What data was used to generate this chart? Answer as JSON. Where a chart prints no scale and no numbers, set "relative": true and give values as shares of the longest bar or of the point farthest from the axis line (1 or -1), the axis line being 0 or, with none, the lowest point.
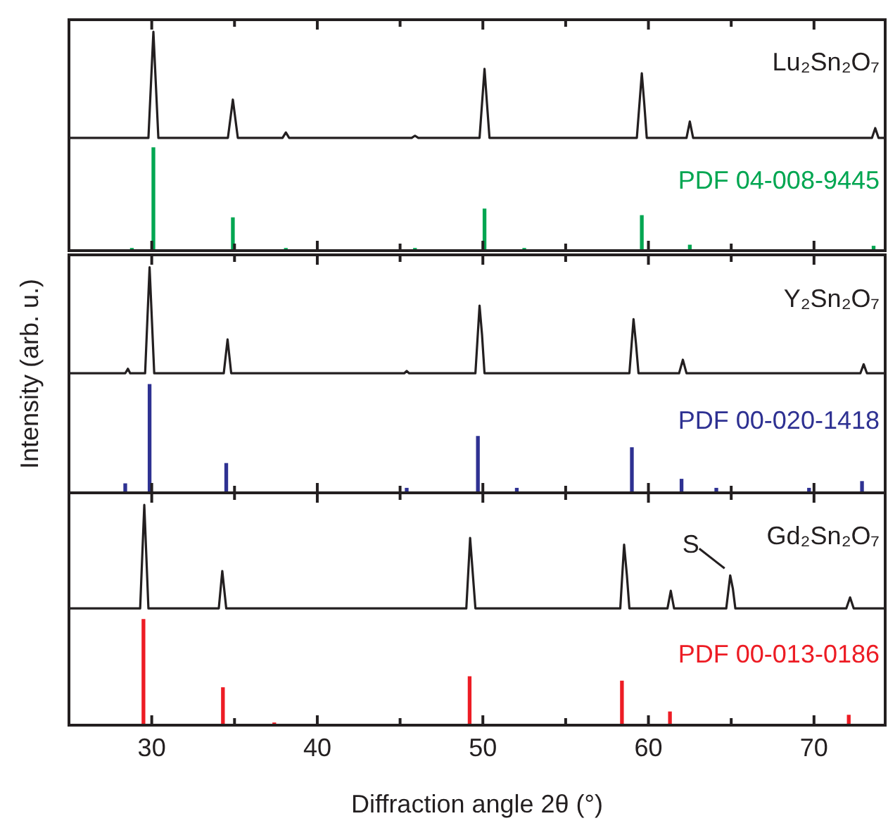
{
  "chart_data": [
    {
      "type": "line",
      "relative": true,
      "xlim": [
        25,
        74.3
      ],
      "xticks": [
        30,
        {
          "value": 35,
          "label": null
        },
        40,
        {
          "value": 45,
          "label": null
        },
        50,
        {
          "value": 55,
          "label": null
        },
        60,
        {
          "value": 65,
          "label": null
        },
        70
      ],
      "tick_labels": false,
      "grid": false,
      "legend": "top right",
      "marker": "none",
      "series": [
        {
          "name": "Lu₂Sn₂O₇",
          "color": "#231f20",
          "x": [
            25,
            29.8,
            30.1,
            30.4,
            34.6,
            34.9,
            35.2,
            37.9,
            38.1,
            38.3,
            45.7,
            45.9,
            46.1,
            49.8,
            50.1,
            50.25,
            50.4,
            59.3,
            59.6,
            59.75,
            59.9,
            62.3,
            62.5,
            62.7,
            73.5,
            73.7,
            73.9,
            74.3
          ],
          "values": [
            0.515,
            0.515,
            1,
            0.515,
            0.515,
            0.69,
            0.515,
            0.515,
            0.54,
            0.515,
            0.515,
            0.525,
            0.515,
            0.515,
            0.83,
            0.67,
            0.515,
            0.515,
            0.81,
            0.67,
            0.515,
            0.515,
            0.59,
            0.515,
            0.515,
            0.56,
            0.515,
            0.515
          ]
        },
        {
          "name": "PDF 04-008-9445",
          "type": "bar",
          "color": "#00a651",
          "x": [
            28.8,
            30.1,
            34.9,
            38.1,
            45.9,
            50.1,
            52.5,
            59.6,
            62.5,
            73.6
          ],
          "values": [
            0.01,
            0.47,
            0.15,
            0.01,
            0.01,
            0.19,
            0.01,
            0.16,
            0.025,
            0.02
          ]
        }
      ]
    },
    {
      "type": "line",
      "relative": true,
      "ylabel": "Intensity (arb. u.)",
      "xlim": [
        25,
        74.3
      ],
      "xticks": [
        30,
        {
          "value": 35,
          "label": null
        },
        40,
        {
          "value": 45,
          "label": null
        },
        50,
        {
          "value": 55,
          "label": null
        },
        60,
        {
          "value": 65,
          "label": null
        },
        70
      ],
      "tick_labels": false,
      "grid": false,
      "legend": "top right",
      "marker": "none",
      "series": [
        {
          "name": "Y₂Sn₂O₇",
          "color": "#231f20",
          "x": [
            25,
            28.4,
            28.56,
            28.7,
            29.6,
            29.87,
            30.15,
            34.35,
            34.58,
            34.8,
            45.25,
            45.4,
            45.55,
            49.55,
            49.8,
            49.95,
            50.1,
            58.85,
            59.1,
            59.25,
            59.4,
            61.85,
            62.08,
            62.3,
            72.8,
            73.0,
            73.2,
            74.3
          ],
          "values": [
            0.53,
            0.53,
            0.55,
            0.53,
            0.53,
            1,
            0.53,
            0.53,
            0.68,
            0.53,
            0.53,
            0.54,
            0.53,
            0.53,
            0.83,
            0.7,
            0.53,
            0.53,
            0.77,
            0.66,
            0.53,
            0.53,
            0.59,
            0.53,
            0.53,
            0.57,
            0.53,
            0.53
          ]
        },
        {
          "name": "PDF 00-020-1418",
          "type": "bar",
          "color": "#2e3192",
          "x": [
            28.4,
            29.87,
            34.5,
            45.4,
            49.7,
            52.05,
            59.0,
            62.0,
            64.1,
            69.7,
            72.9
          ],
          "values": [
            0.04,
            0.48,
            0.13,
            0.02,
            0.25,
            0.02,
            0.2,
            0.06,
            0.02,
            0.02,
            0.05
          ]
        }
      ]
    },
    {
      "type": "line",
      "relative": true,
      "xlabel": "Diffraction angle 2θ (°)",
      "xlim": [
        25,
        74.3
      ],
      "xticks": [
        30,
        {
          "value": 35,
          "label": null
        },
        40,
        {
          "value": 45,
          "label": null
        },
        50,
        {
          "value": 55,
          "label": null
        },
        60,
        {
          "value": 65,
          "label": null
        },
        70
      ],
      "tick_labels": "x",
      "grid": false,
      "legend": "top right",
      "marker": "none",
      "annotations": [
        {
          "text": "S",
          "x": 64.94,
          "y": 0.68
        }
      ],
      "series": [
        {
          "name": "Gd₂Sn₂O₇",
          "color": "#231f20",
          "x": [
            25,
            29.3,
            29.55,
            29.8,
            34.05,
            34.26,
            34.5,
            49.0,
            49.23,
            49.4,
            49.55,
            58.3,
            58.53,
            58.7,
            58.85,
            61.15,
            61.35,
            61.55,
            64.7,
            64.94,
            65.1,
            65.25,
            71.95,
            72.18,
            72.4,
            74.3
          ],
          "values": [
            0.53,
            0.53,
            1,
            0.53,
            0.53,
            0.7,
            0.53,
            0.53,
            0.85,
            0.68,
            0.53,
            0.53,
            0.82,
            0.68,
            0.53,
            0.53,
            0.61,
            0.53,
            0.53,
            0.68,
            0.62,
            0.53,
            0.53,
            0.58,
            0.53,
            0.53
          ]
        },
        {
          "name": "PDF 00-013-0186",
          "type": "bar",
          "color": "#ed1c24",
          "x": [
            29.5,
            34.3,
            37.4,
            49.2,
            58.4,
            61.3,
            72.1
          ],
          "values": [
            0.48,
            0.17,
            0.01,
            0.22,
            0.2,
            0.06,
            0.045
          ]
        }
      ]
    }
  ]
}
